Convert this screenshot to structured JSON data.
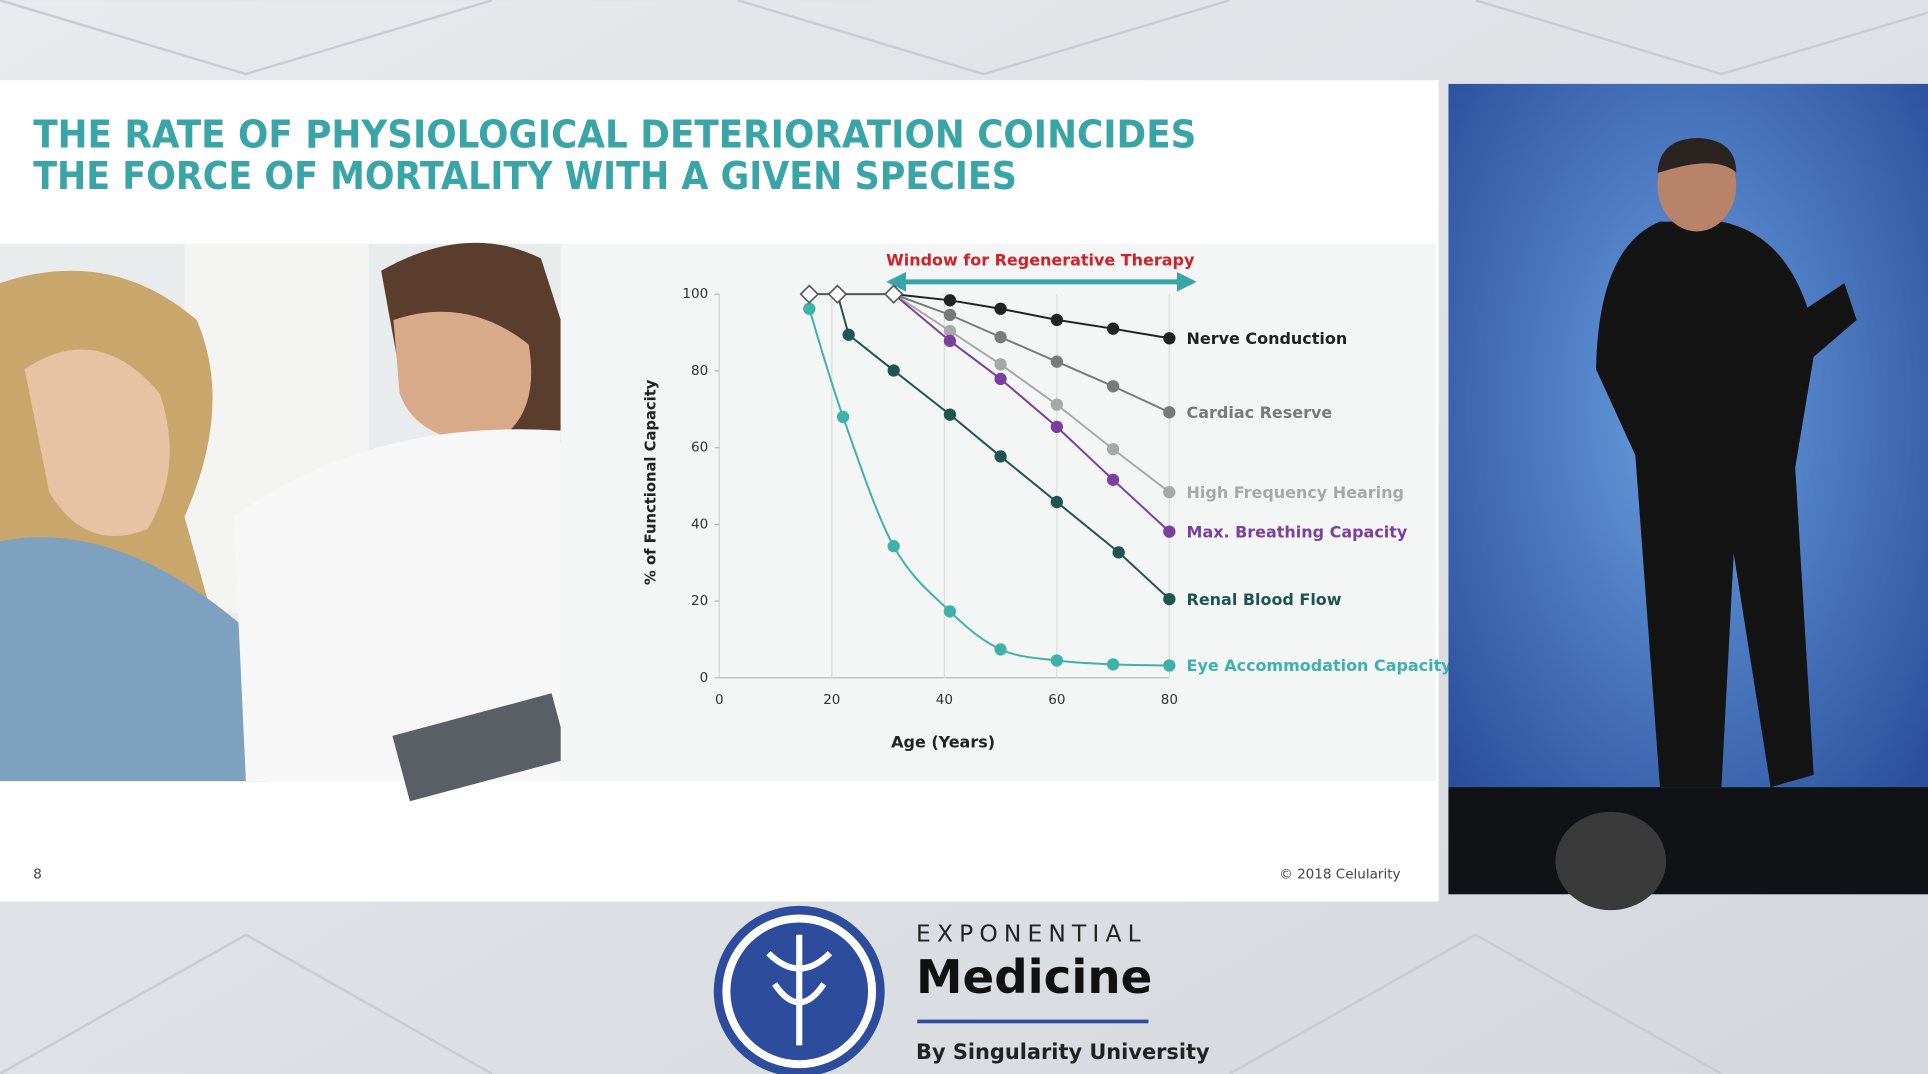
{
  "slide": {
    "title_lines": [
      "THE RATE OF PHYSIOLOGICAL DETERIORATION COINCIDES",
      "THE FORCE OF MORTALITY WITH A GIVEN SPECIES"
    ],
    "page_number": "8",
    "copyright": "© 2018 Celularity"
  },
  "logo": {
    "top": "EXPONENTIAL",
    "name": "Medicine",
    "byline": "By Singularity University"
  },
  "chart_data": {
    "type": "line",
    "annotation": "Window for Regenerative Therapy",
    "xlabel": "Age (Years)",
    "ylabel": "% of Functional Capacity",
    "xlim": [
      0,
      80
    ],
    "xticks": [
      0,
      20,
      40,
      60,
      80
    ],
    "ylim": [
      0,
      100
    ],
    "yticks": [
      0,
      20,
      40,
      60,
      80,
      100
    ],
    "grid": true,
    "baseline": {
      "color": "#555555",
      "x": [
        16,
        21,
        31
      ],
      "values": [
        100,
        100,
        100
      ]
    },
    "series": [
      {
        "name": "Nerve Conduction",
        "color": "#222222",
        "x": [
          31,
          41,
          50,
          60,
          70,
          80
        ],
        "values": [
          100,
          98.4,
          96.2,
          93.3,
          91,
          88.5
        ]
      },
      {
        "name": "Cardiac Reserve",
        "color": "#7a7a7a",
        "x": [
          31,
          41,
          50,
          60,
          70,
          80
        ],
        "values": [
          100,
          94.6,
          88.8,
          82.4,
          76,
          69.2
        ]
      },
      {
        "name": "High Frequency Hearing",
        "color": "#a8a8a8",
        "x": [
          31,
          41,
          50,
          60,
          70,
          80
        ],
        "values": [
          100,
          90.4,
          81.7,
          71.2,
          59.6,
          48.4
        ]
      },
      {
        "name": "Max. Breathing Capacity",
        "color": "#7b3f9e",
        "x": [
          31,
          41,
          50,
          60,
          70,
          80
        ],
        "values": [
          100,
          87.8,
          77.9,
          65.4,
          51.6,
          38.1
        ]
      },
      {
        "name": "Renal Blood Flow",
        "color": "#1f5550",
        "x": [
          21,
          23,
          31,
          41,
          50,
          60,
          71,
          80
        ],
        "values": [
          100,
          89.4,
          80.1,
          68.6,
          57.7,
          45.8,
          32.7,
          20.5
        ]
      },
      {
        "name": "Eye Accommodation Capacity",
        "color": "#3fb1ab",
        "x": [
          16,
          22,
          31,
          41,
          50,
          60,
          70,
          80
        ],
        "values": [
          96.2,
          68,
          34.3,
          17.3,
          7.4,
          4.5,
          3.5,
          3.2
        ]
      }
    ]
  }
}
